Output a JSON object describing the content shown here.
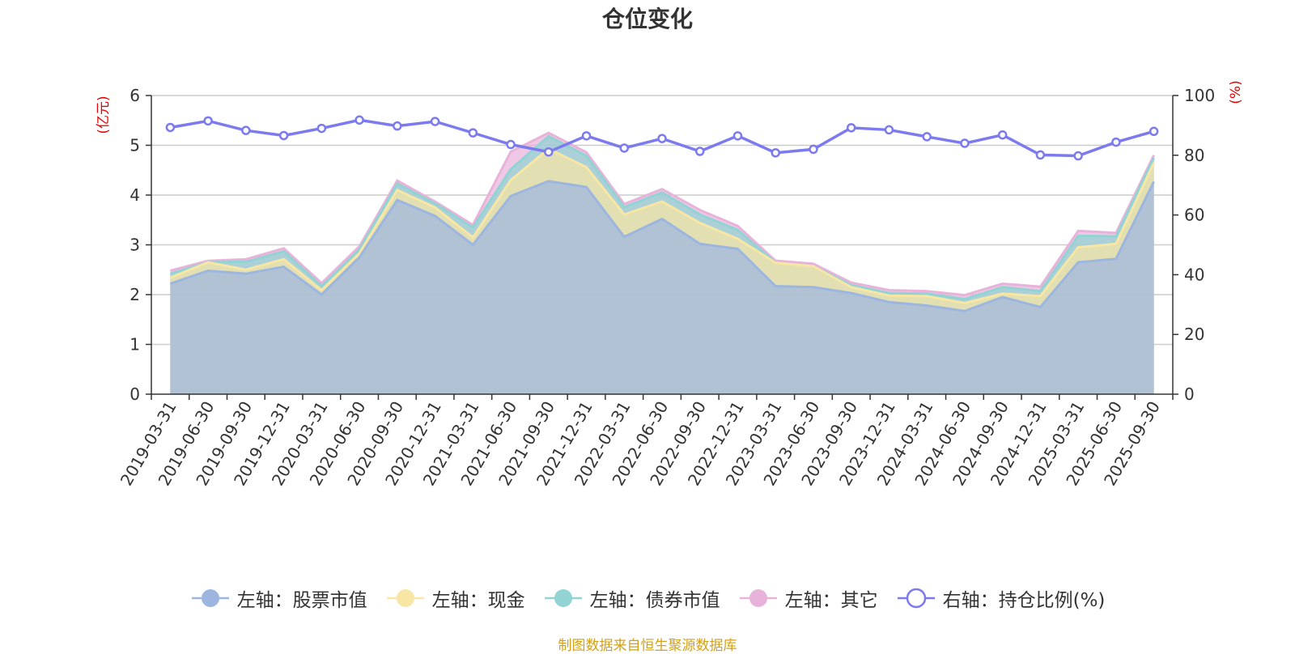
{
  "header": {
    "title": "仓位变化"
  },
  "footer": {
    "source": "制图数据来自恒生聚源数据库"
  },
  "legend": [
    {
      "label": "左轴：股票市值",
      "color": "#9db6e0",
      "marker": "filled"
    },
    {
      "label": "左轴：现金",
      "color": "#f7e6a4",
      "marker": "filled"
    },
    {
      "label": "左轴：债券市值",
      "color": "#92d3d3",
      "marker": "filled"
    },
    {
      "label": "左轴：其它",
      "color": "#e8b3da",
      "marker": "filled"
    },
    {
      "label": "右轴：持仓比例(%)",
      "color": "#7b7bef",
      "marker": "hollow"
    }
  ],
  "chart_data": {
    "type": "area",
    "title": "仓位变化",
    "stacked": true,
    "categories": [
      "2019-03-31",
      "2019-06-30",
      "2019-09-30",
      "2019-12-31",
      "2020-03-31",
      "2020-06-30",
      "2020-09-30",
      "2020-12-31",
      "2021-03-31",
      "2021-06-30",
      "2021-09-30",
      "2021-12-31",
      "2022-03-31",
      "2022-06-30",
      "2022-09-30",
      "2022-12-31",
      "2023-03-31",
      "2023-06-30",
      "2023-09-30",
      "2023-12-31",
      "2024-03-31",
      "2024-06-30",
      "2024-09-30",
      "2024-12-31",
      "2025-03-31",
      "2025-06-30",
      "2025-09-30"
    ],
    "left_axis": {
      "label": "(亿元)",
      "ylim": [
        0,
        6
      ],
      "ticks": [
        0,
        1,
        2,
        3,
        4,
        5,
        6
      ]
    },
    "right_axis": {
      "label": "(%)",
      "ylim": [
        0,
        100
      ],
      "ticks": [
        0,
        20,
        40,
        60,
        80,
        100
      ]
    },
    "series": [
      {
        "name": "左轴：股票市值",
        "axis": "left",
        "color": "#9db6e0",
        "values": [
          2.22,
          2.48,
          2.42,
          2.56,
          2.0,
          2.75,
          3.9,
          3.58,
          3.0,
          3.98,
          4.28,
          4.16,
          3.16,
          3.52,
          3.02,
          2.92,
          2.17,
          2.15,
          2.03,
          1.85,
          1.78,
          1.67,
          1.95,
          1.75,
          2.65,
          2.72,
          4.27
        ]
      },
      {
        "name": "左轴：现金",
        "axis": "left",
        "color": "#f7e6a4",
        "values": [
          0.12,
          0.17,
          0.08,
          0.15,
          0.09,
          0.08,
          0.2,
          0.17,
          0.15,
          0.32,
          0.65,
          0.4,
          0.45,
          0.35,
          0.42,
          0.2,
          0.47,
          0.42,
          0.12,
          0.13,
          0.19,
          0.16,
          0.07,
          0.22,
          0.3,
          0.3,
          0.38
        ]
      },
      {
        "name": "左轴：债券市值",
        "axis": "left",
        "color": "#92d3d3",
        "values": [
          0.08,
          0.0,
          0.16,
          0.16,
          0.08,
          0.08,
          0.13,
          0.08,
          0.2,
          0.22,
          0.25,
          0.23,
          0.15,
          0.18,
          0.17,
          0.18,
          0.0,
          0.0,
          0.04,
          0.05,
          0.05,
          0.08,
          0.13,
          0.1,
          0.23,
          0.15,
          0.1
        ]
      },
      {
        "name": "左轴：其它",
        "axis": "left",
        "color": "#e8b3da",
        "values": [
          0.06,
          0.03,
          0.05,
          0.06,
          0.06,
          0.06,
          0.06,
          0.04,
          0.05,
          0.35,
          0.07,
          0.07,
          0.06,
          0.07,
          0.09,
          0.08,
          0.04,
          0.05,
          0.05,
          0.06,
          0.05,
          0.08,
          0.07,
          0.09,
          0.1,
          0.07,
          0.05
        ]
      },
      {
        "name": "右轴：持仓比例(%)",
        "axis": "right",
        "type": "line",
        "color": "#7b7bef",
        "values": [
          89.3,
          91.5,
          88.3,
          86.6,
          89.0,
          91.8,
          89.8,
          91.3,
          87.5,
          83.6,
          81.1,
          86.5,
          82.4,
          85.6,
          81.3,
          86.5,
          80.8,
          82.0,
          89.2,
          88.5,
          86.2,
          84.0,
          86.8,
          80.1,
          79.8,
          84.4,
          88.0
        ]
      }
    ]
  }
}
